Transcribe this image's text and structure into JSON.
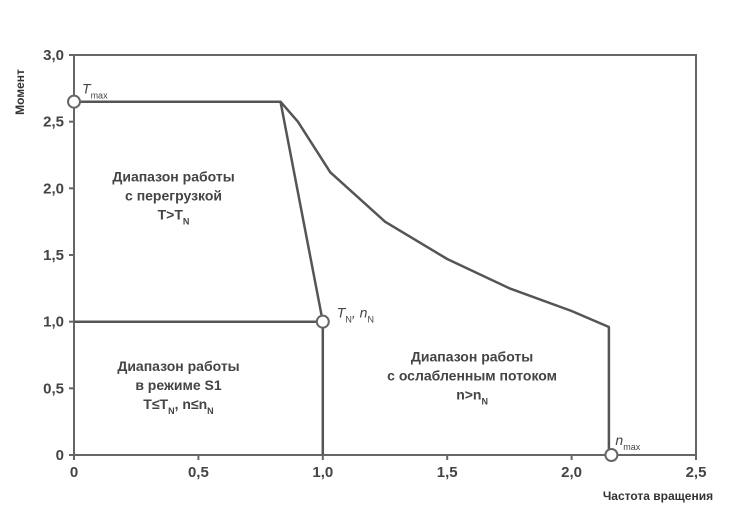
{
  "chart_data": {
    "type": "line",
    "xlabel": "Частота вращения",
    "ylabel": "Момент",
    "xlim": [
      0,
      2.5
    ],
    "ylim": [
      0,
      3.0
    ],
    "x_ticks": [
      "0",
      "0,5",
      "1,0",
      "1,5",
      "2,0",
      "2,5"
    ],
    "y_ticks": [
      "0",
      "0,5",
      "1,0",
      "1,5",
      "2,0",
      "2,5",
      "3,0"
    ],
    "x_tick_values": [
      0,
      0.5,
      1.0,
      1.5,
      2.0,
      2.5
    ],
    "y_tick_values": [
      0,
      0.5,
      1.0,
      1.5,
      2.0,
      2.5,
      3.0
    ],
    "series": [
      {
        "x": [
          0,
          0.83,
          1.0
        ],
        "y": [
          2.65,
          2.65,
          1.0
        ]
      },
      {
        "x": [
          0.83,
          0.9,
          1.03,
          1.25,
          1.5,
          1.75,
          2.0,
          2.15,
          2.15
        ],
        "y": [
          2.65,
          2.5,
          2.12,
          1.75,
          1.47,
          1.25,
          1.08,
          0.96,
          0
        ]
      },
      {
        "x": [
          0,
          1.0,
          1.0
        ],
        "y": [
          1.0,
          1.0,
          0
        ]
      }
    ],
    "markers": [
      {
        "x": 0,
        "y": 2.65,
        "label": "T",
        "sub": "max"
      },
      {
        "x": 1.0,
        "y": 1.0,
        "label": "T",
        "sub": "N",
        "label2": ", n",
        "sub2": "N"
      },
      {
        "x": 2.16,
        "y": 0,
        "label": "n",
        "sub": "max"
      }
    ],
    "regions": [
      {
        "lines": [
          "Диапазон работы",
          "с перегрузкой"
        ],
        "math": {
          "a": "T>T",
          "sub": "N"
        },
        "x": 0.4,
        "y": 2.05
      },
      {
        "lines": [
          "Диапазон работы",
          "в режиме S1"
        ],
        "math": {
          "a": "T≤T",
          "sub": "N",
          "b": ", n≤n",
          "sub2": "N"
        },
        "x": 0.42,
        "y": 0.63
      },
      {
        "lines": [
          "Диапазон работы",
          "с ослабленным потоком"
        ],
        "math": {
          "a": "n>n",
          "sub": "N"
        },
        "x": 1.6,
        "y": 0.7
      }
    ],
    "grid": false,
    "legend": "none"
  }
}
